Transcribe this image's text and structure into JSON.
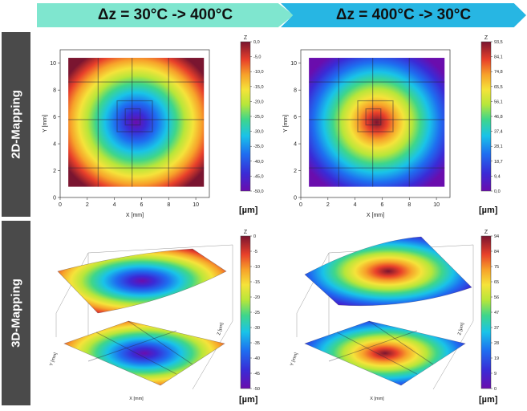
{
  "headers": [
    "Δz = 30°C -> 400°C",
    "Δz = 400°C -> 30°C"
  ],
  "row_labels": [
    "2D-Mapping",
    "3D-Mapping"
  ],
  "colors": {
    "header1": "#7fe6cf",
    "header2": "#27b6e3",
    "sidebar": "#4a4a4a"
  },
  "chart_data": [
    {
      "type": "heatmap",
      "panel": "2D-Mapping, Δz = 30°C -> 400°C",
      "xlabel": "X [mm]",
      "ylabel": "Y [mm]",
      "x_ticks": [
        0,
        2,
        4,
        6,
        8,
        10
      ],
      "y_ticks": [
        0,
        2,
        4,
        6,
        8,
        10
      ],
      "xlim": [
        0,
        11
      ],
      "ylim": [
        0,
        11
      ],
      "colorbar_title": "Z",
      "unit": "[µm]",
      "colorbar_ticks": [
        "0,0",
        "-5,0",
        "-10,0",
        "-15,0",
        "-20,0",
        "-25,0",
        "-30,0",
        "-35,0",
        "-40,0",
        "-45,0",
        "-50,0"
      ],
      "zlim": [
        -50,
        0
      ],
      "center_value": -48,
      "edge_value": -5
    },
    {
      "type": "heatmap",
      "panel": "2D-Mapping, Δz = 400°C -> 30°C",
      "xlabel": "X [mm]",
      "ylabel": "Y [mm]",
      "x_ticks": [
        0,
        2,
        4,
        6,
        8,
        10
      ],
      "y_ticks": [
        0,
        2,
        4,
        6,
        8,
        10
      ],
      "xlim": [
        0,
        11
      ],
      "ylim": [
        0,
        11
      ],
      "colorbar_title": "Z",
      "unit": "[µm]",
      "colorbar_ticks": [
        "93,5",
        "84,1",
        "74,8",
        "65,5",
        "56,1",
        "46,8",
        "37,4",
        "28,1",
        "18,7",
        "9,4",
        "0,0"
      ],
      "zlim": [
        0,
        93.5
      ],
      "center_value": 90,
      "edge_value": 10
    },
    {
      "type": "heatmap",
      "panel": "3D-Mapping, Δz = 30°C -> 400°C",
      "axis_labels": [
        "X [mm]",
        "Y [mm]",
        "Z [µm]"
      ],
      "colorbar_title": "Z",
      "unit": "[µm]",
      "colorbar_ticks": [
        "0",
        "-5",
        "-10",
        "-15",
        "-20",
        "-25",
        "-30",
        "-35",
        "-40",
        "-45",
        "-50"
      ],
      "zlim": [
        -50,
        0
      ],
      "center_value": -48,
      "edge_value": -5
    },
    {
      "type": "heatmap",
      "panel": "3D-Mapping, Δz = 400°C -> 30°C",
      "axis_labels": [
        "X [mm]",
        "Y [mm]",
        "Z [µm]"
      ],
      "colorbar_title": "Z",
      "unit": "[µm]",
      "colorbar_ticks": [
        "94",
        "84",
        "75",
        "65",
        "56",
        "47",
        "37",
        "28",
        "19",
        "9",
        "0"
      ],
      "zlim": [
        0,
        94
      ],
      "center_value": 90,
      "edge_value": 10
    }
  ]
}
